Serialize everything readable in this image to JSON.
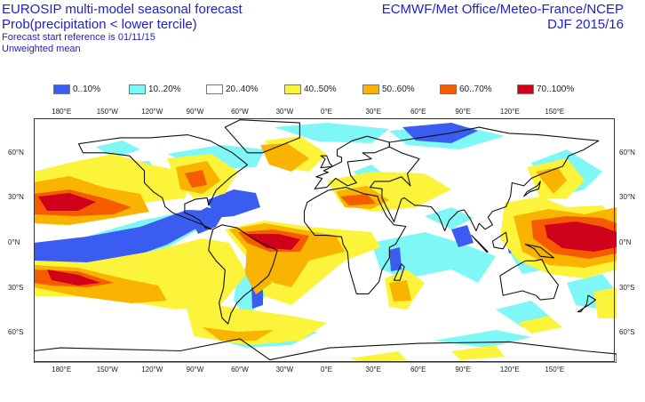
{
  "header": {
    "title": "EUROSIP multi-model seasonal forecast",
    "subtitle": "Prob(precipitation < lower tercile)",
    "reference": "Forecast start reference is 01/11/15",
    "mean_type": "Unweighted mean",
    "centres": "ECMWF/Met Office/Meteo-France/NCEP",
    "season": "DJF 2015/16"
  },
  "legend": [
    {
      "label": "0..10%",
      "color": "#3a5cf0"
    },
    {
      "label": "10..20%",
      "color": "#7ff7f7"
    },
    {
      "label": "20..40%",
      "color": "#ffffff"
    },
    {
      "label": "40..50%",
      "color": "#fcf43a"
    },
    {
      "label": "50..60%",
      "color": "#f8b400"
    },
    {
      "label": "60..70%",
      "color": "#f55c00"
    },
    {
      "label": "70..100%",
      "color": "#d0021b"
    }
  ],
  "axes": {
    "lon_labels": [
      "180°E",
      "150°W",
      "120°W",
      "90°W",
      "60°W",
      "30°W",
      "0°E",
      "30°E",
      "60°E",
      "90°E",
      "120°E",
      "150°E"
    ],
    "lat_labels": [
      "60°N",
      "30°N",
      "0°N",
      "30°S",
      "60°S"
    ]
  },
  "map": {
    "projection": "equirectangular",
    "lon_range": [
      -198,
      192
    ],
    "lat_range": [
      83,
      -80
    ]
  }
}
